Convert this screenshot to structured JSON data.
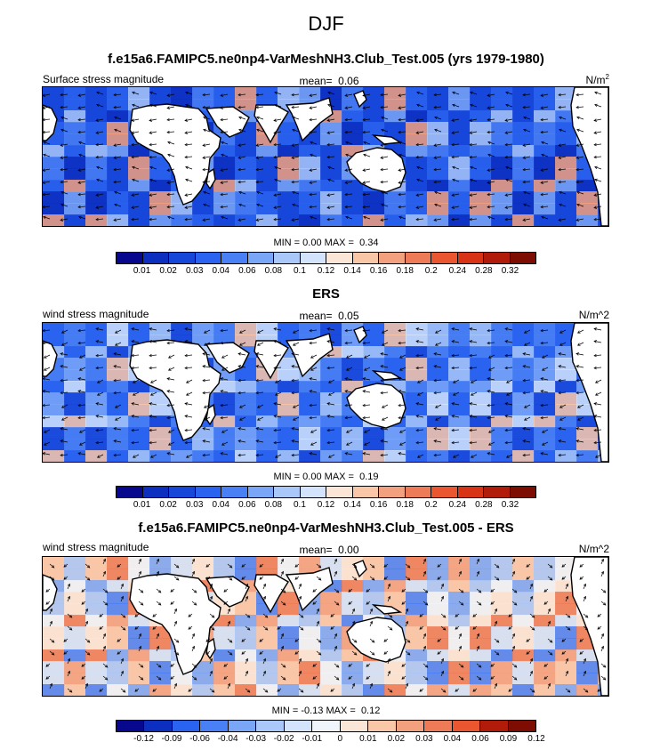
{
  "main_title": "DJF",
  "colors": {
    "seq": [
      "#08088f",
      "#0c2fbf",
      "#1747d9",
      "#2a63ef",
      "#4a80f5",
      "#7aa6f7",
      "#a9c7f8",
      "#d2e3fb",
      "#fbe5d6",
      "#f9c6a7",
      "#f3a07e",
      "#ee7b57",
      "#e9562f",
      "#d93316",
      "#b11c0a",
      "#7d0c03"
    ],
    "div": [
      "#08088f",
      "#0c2fbf",
      "#2a63ef",
      "#4a80f5",
      "#7aa6f7",
      "#a9c7f8",
      "#d2e3fb",
      "#f0f4fb",
      "#fbe5d6",
      "#f9c6a7",
      "#f3a07e",
      "#ee7b57",
      "#e9562f",
      "#b11c0a",
      "#7d0c03"
    ]
  },
  "panels": [
    {
      "title": "f.e15a6.FAMIPC5.ne0np4-VarMeshNH3.Club_Test.005 (yrs 1979-1980)",
      "left_label": "Surface stress magnitude",
      "mean_label": "mean=",
      "mean_value": "0.06",
      "unit_base": "N/m",
      "unit_sup": "2",
      "unit_plain": "",
      "min_label": "MIN =",
      "min_value": "0.00",
      "max_label": "MAX =",
      "max_value": "0.34",
      "ticks": [
        "0.01",
        "0.02",
        "0.03",
        "0.04",
        "0.06",
        "0.08",
        "0.1",
        "0.12",
        "0.14",
        "0.16",
        "0.18",
        "0.2",
        "0.24",
        "0.28",
        "0.32"
      ]
    },
    {
      "title": "ERS",
      "left_label": "wind stress magnitude",
      "mean_label": "mean=",
      "mean_value": "0.05",
      "unit_base": "",
      "unit_sup": "",
      "unit_plain": "N/m^2",
      "min_label": "MIN =",
      "min_value": "0.00",
      "max_label": "MAX =",
      "max_value": "0.19",
      "ticks": [
        "0.01",
        "0.02",
        "0.03",
        "0.04",
        "0.06",
        "0.08",
        "0.1",
        "0.12",
        "0.14",
        "0.16",
        "0.18",
        "0.2",
        "0.24",
        "0.28",
        "0.32"
      ]
    },
    {
      "title": "f.e15a6.FAMIPC5.ne0np4-VarMeshNH3.Club_Test.005 - ERS",
      "left_label": "wind stress magnitude",
      "mean_label": "mean=",
      "mean_value": "0.00",
      "unit_base": "",
      "unit_sup": "",
      "unit_plain": "N/m^2",
      "min_label": "MIN =",
      "min_value": "-0.13",
      "max_label": "MAX =",
      "max_value": "0.12",
      "ticks": [
        "-0.12",
        "-0.09",
        "-0.06",
        "-0.04",
        "-0.03",
        "-0.02",
        "-0.01",
        "0",
        "0.01",
        "0.02",
        "0.03",
        "0.04",
        "0.06",
        "0.09",
        "0.12"
      ]
    }
  ]
}
